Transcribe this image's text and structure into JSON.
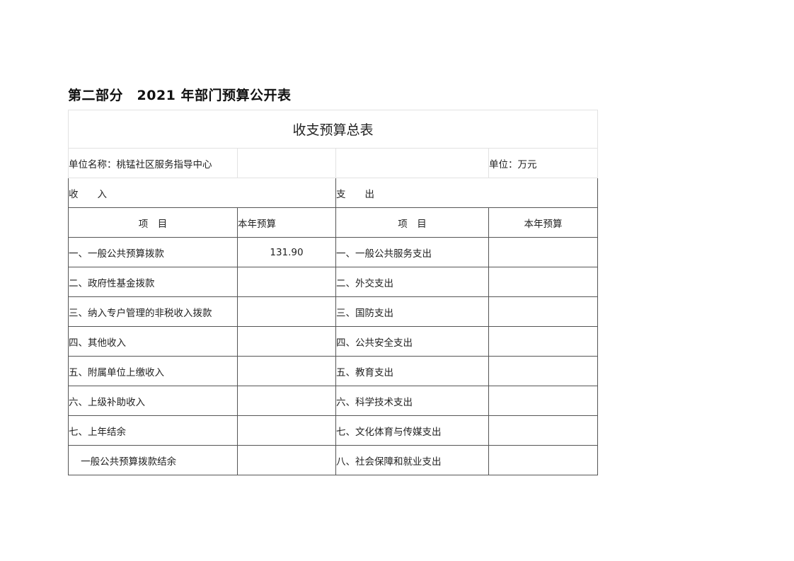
{
  "heading": "第二部分　2021 年部门预算公开表",
  "table": {
    "title": "收支预算总表",
    "unit_name": "单位名称：桃锰社区服务指导中心",
    "unit": "单位：万元",
    "income_label": "收　　入",
    "expense_label": "支　　出",
    "col_item": "项　目",
    "col_budget": "本年预算",
    "rows": [
      {
        "income": "一、一般公共预算拨款",
        "income_value": "131.90",
        "expense": "一、一般公共服务支出",
        "expense_value": ""
      },
      {
        "income": "二、政府性基金拨款",
        "income_value": "",
        "expense": "二、外交支出",
        "expense_value": ""
      },
      {
        "income": "三、纳入专户管理的非税收入拨款",
        "income_value": "",
        "expense": "三、国防支出",
        "expense_value": ""
      },
      {
        "income": "四、其他收入",
        "income_value": "",
        "expense": "四、公共安全支出",
        "expense_value": ""
      },
      {
        "income": "五、附属单位上缴收入",
        "income_value": "",
        "expense": "五、教育支出",
        "expense_value": ""
      },
      {
        "income": "六、上级补助收入",
        "income_value": "",
        "expense": "六、科学技术支出",
        "expense_value": ""
      },
      {
        "income": "七、上年结余",
        "income_value": "",
        "expense": "七、文化体育与传媒支出",
        "expense_value": ""
      },
      {
        "income": "    一般公共预算拨款结余",
        "income_value": "",
        "expense": "八、社会保障和就业支出",
        "expense_value": ""
      }
    ]
  }
}
